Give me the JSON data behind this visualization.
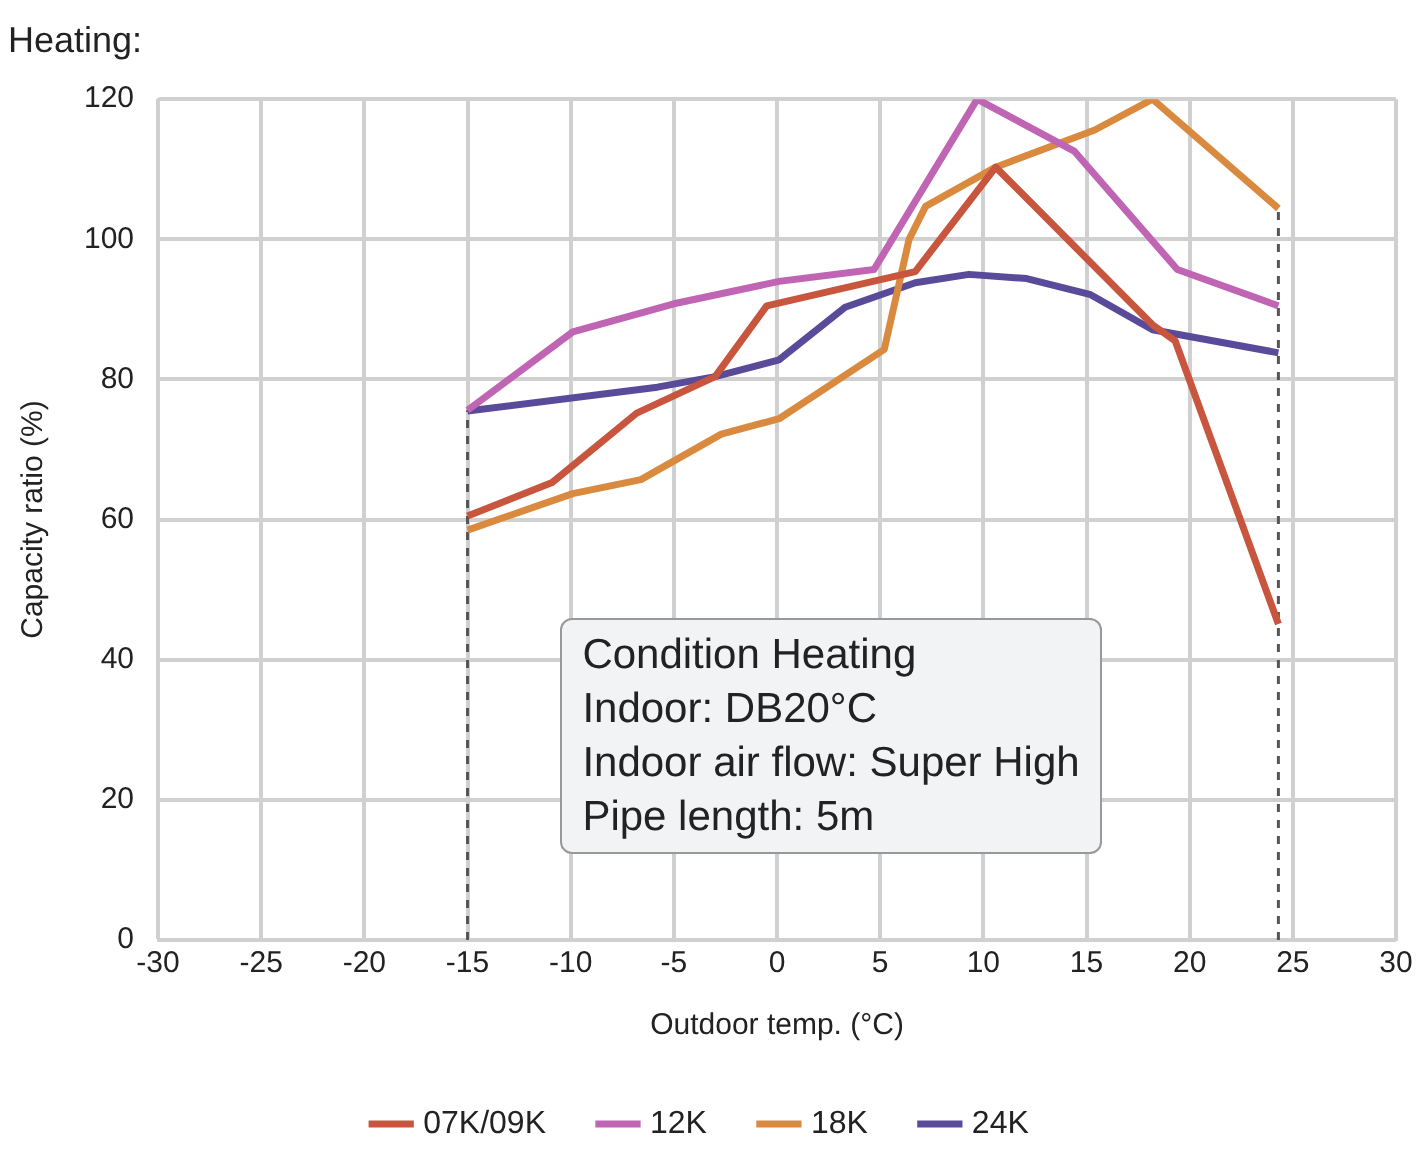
{
  "chart_data": {
    "type": "line",
    "title": "Heating:",
    "xlabel": "Outdoor temp. (°C)",
    "ylabel": "Capacity ratio (%)",
    "xlim": [
      -30,
      30
    ],
    "xticks": [
      -30,
      -25,
      -20,
      -15,
      -10,
      -5,
      0,
      5,
      10,
      15,
      20,
      25,
      30
    ],
    "ylim": [
      0,
      120
    ],
    "yticks": [
      0,
      20,
      40,
      60,
      80,
      100,
      120
    ],
    "grid": true,
    "legend": "bottom",
    "marker": "none",
    "line_style": "solid",
    "series": [
      {
        "name": "07K/09K",
        "color": "#c8553d",
        "x": [
          -15,
          -10.9,
          -6.8,
          -3,
          -0.5,
          6.7,
          10.6,
          18.2,
          19.3,
          24.3
        ],
        "values": [
          60.5,
          65.3,
          75.2,
          80.4,
          90.5,
          95.4,
          110.3,
          87.8,
          85.5,
          45.1
        ]
      },
      {
        "name": "12K",
        "color": "#c064b4",
        "x": [
          -15,
          -9.9,
          -5,
          0.1,
          4.7,
          9.7,
          14.4,
          19.4,
          24.3
        ],
        "values": [
          75.6,
          86.8,
          90.8,
          94,
          95.7,
          120,
          112.6,
          95.7,
          90.5
        ]
      },
      {
        "name": "18K",
        "color": "#d98a3f",
        "x": [
          -15,
          -9.9,
          -6.6,
          -2.7,
          0.1,
          5.2,
          6.4,
          7.2,
          10.6,
          15.4,
          18.2,
          24.3
        ],
        "values": [
          58.5,
          63.7,
          65.7,
          72.2,
          74.4,
          84.3,
          100,
          104.7,
          110.3,
          115.6,
          120,
          104.4
        ]
      },
      {
        "name": "24K",
        "color": "#5a4a9a",
        "x": [
          -15,
          -5.8,
          -3,
          0.1,
          3.3,
          6.7,
          9.3,
          12.1,
          15.2,
          18.2,
          24.3
        ],
        "values": [
          75.5,
          78.9,
          80.4,
          82.8,
          90.3,
          93.8,
          95,
          94.4,
          92.1,
          87.1,
          83.8
        ]
      }
    ],
    "ref_lines": [
      {
        "axis": "x",
        "value": -15,
        "color": "#555555",
        "line_style": "dashed"
      },
      {
        "axis": "x",
        "value": 24.3,
        "color": "#555555",
        "line_style": "dashed"
      }
    ],
    "annotations": [
      "Condition Heating",
      "Indoor: DB20°C",
      "Indoor air flow: Super High",
      "Pipe length: 5m"
    ]
  }
}
